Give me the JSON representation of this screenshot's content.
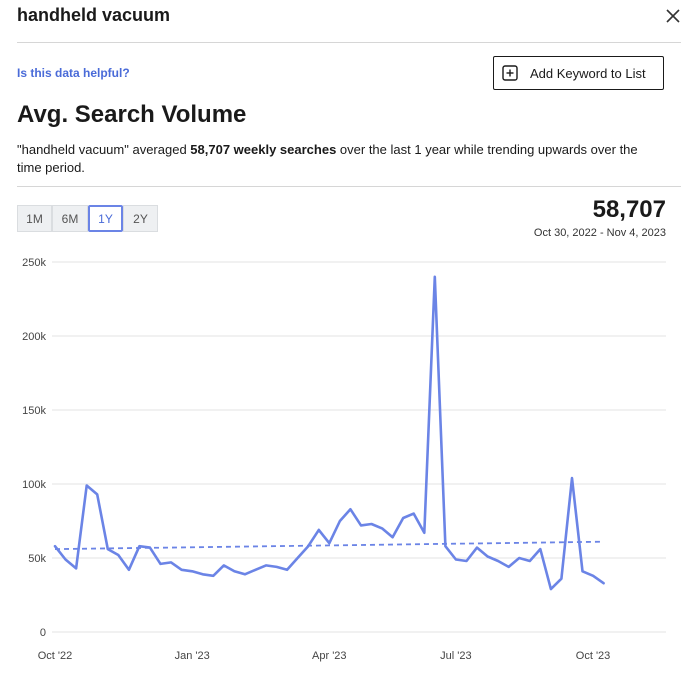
{
  "header": {
    "title": "handheld vacuum",
    "close_icon": "close-icon"
  },
  "toolbar": {
    "helpful_link": "Is this data helpful?",
    "add_keyword_label": "Add Keyword to List",
    "add_icon": "plus-square-icon"
  },
  "section": {
    "heading": "Avg. Search Volume",
    "desc_prefix": "\"handheld vacuum\" averaged ",
    "desc_bold": "58,707 weekly searches",
    "desc_suffix": " over the last 1 year while trending upwards over the time period."
  },
  "ranges": [
    {
      "label": "1M",
      "active": false
    },
    {
      "label": "6M",
      "active": false
    },
    {
      "label": "1Y",
      "active": true
    },
    {
      "label": "2Y",
      "active": false
    }
  ],
  "summary": {
    "value": "58,707",
    "date_range": "Oct 30, 2022 - Nov 4, 2023"
  },
  "colors": {
    "line": "#6b84e6",
    "trend": "#6b84e6",
    "grid": "#e3e3e3",
    "accent": "#4a6bd8"
  },
  "chart_data": {
    "type": "line",
    "y_tick_labels": [
      "250k",
      "200k",
      "150k",
      "100k",
      "50k",
      "0"
    ],
    "y_ticks": [
      250000,
      200000,
      150000,
      100000,
      50000,
      0
    ],
    "ylim": [
      0,
      250000
    ],
    "x_tick_labels": [
      "Oct '22",
      "Jan '23",
      "Apr '23",
      "Jul '23",
      "Oct '23"
    ],
    "x_tick_weeks": [
      0,
      13,
      26,
      38,
      51
    ],
    "grid": true,
    "series": [
      {
        "values": [
          58000,
          49000,
          43000,
          99000,
          93000,
          56000,
          52000,
          42000,
          58000,
          57000,
          46000,
          47000,
          42000,
          41000,
          39000,
          38000,
          45000,
          41000,
          39000,
          42000,
          45000,
          44000,
          42000,
          50000,
          58000,
          69000,
          60000,
          75000,
          83000,
          72000,
          73000,
          70000,
          64000,
          77000,
          80000,
          67000,
          240000,
          58000,
          49000,
          48000,
          57000,
          51000,
          48000,
          44000,
          50000,
          48000,
          56000,
          29000,
          36000,
          104000,
          41000,
          38000,
          33000
        ]
      },
      {
        "values": [
          56000,
          61000
        ]
      }
    ]
  }
}
